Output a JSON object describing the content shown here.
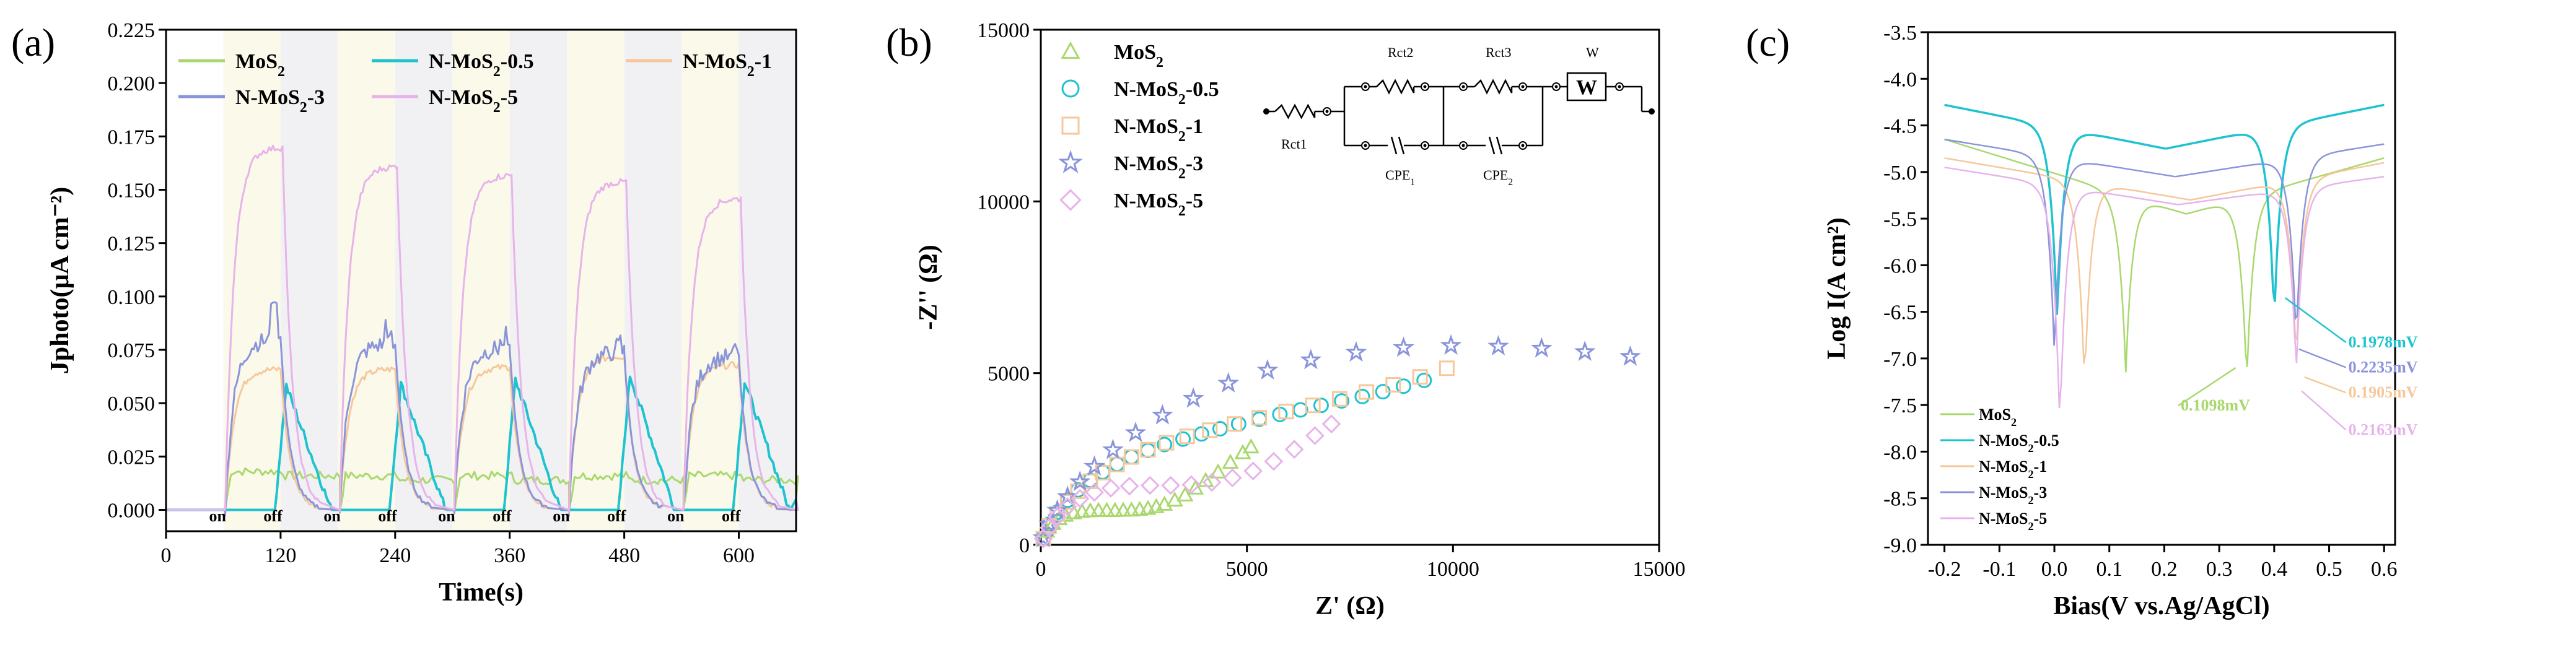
{
  "chart_data": [
    {
      "id": "a",
      "type": "line",
      "panel_label": "(a)",
      "xlabel": "Time(s)",
      "ylabel": "Jphoto(μA cm⁻²)",
      "xlim": [
        0,
        660
      ],
      "ylim": [
        -0.01,
        0.225
      ],
      "xticks": [
        "0",
        "120",
        "240",
        "360",
        "480",
        "600"
      ],
      "xtick_values": [
        0,
        120,
        240,
        360,
        480,
        600
      ],
      "yticks": [
        "0.000",
        "0.025",
        "0.050",
        "0.075",
        "0.100",
        "0.125",
        "0.150",
        "0.175",
        "0.200",
        "0.225"
      ],
      "ytick_values": [
        0,
        0.025,
        0.05,
        0.075,
        0.1,
        0.125,
        0.15,
        0.175,
        0.2,
        0.225
      ],
      "on_off_labels": [
        {
          "t": 54,
          "text": "on"
        },
        {
          "t": 112,
          "text": "off"
        },
        {
          "t": 174,
          "text": "on"
        },
        {
          "t": 232,
          "text": "off"
        },
        {
          "t": 294,
          "text": "on"
        },
        {
          "t": 352,
          "text": "off"
        },
        {
          "t": 414,
          "text": "on"
        },
        {
          "t": 472,
          "text": "off"
        },
        {
          "t": 534,
          "text": "on"
        },
        {
          "t": 592,
          "text": "off"
        }
      ],
      "light_periods": [
        [
          60,
          120
        ],
        [
          180,
          240
        ],
        [
          300,
          360
        ],
        [
          420,
          480
        ],
        [
          540,
          600
        ]
      ],
      "legend": [
        "MoS₂",
        "N-MoS₂-0.5",
        "N-MoS₂-1",
        "N-MoS₂-3",
        "N-MoS₂-5"
      ],
      "series": [
        {
          "name": "MoS₂",
          "color": "#a9d86e",
          "cycles": [
            {
              "t_on": 62,
              "plateau": 0.018,
              "t_off": 122,
              "end": 0.014
            },
            {
              "t_on": 182,
              "plateau": 0.016,
              "t_off": 242,
              "end": 0.014
            },
            {
              "t_on": 302,
              "plateau": 0.016,
              "t_off": 362,
              "end": 0.014
            },
            {
              "t_on": 422,
              "plateau": 0.016,
              "t_off": 482,
              "end": 0.014
            },
            {
              "t_on": 542,
              "plateau": 0.016,
              "t_off": 602,
              "end": 0.014
            }
          ]
        },
        {
          "name": "N-MoS₂-0.5",
          "color": "#1ec3cf",
          "cycles": [
            {
              "t_on": 62,
              "plateau": 0.0,
              "t_off": 122,
              "end": 0.058
            },
            {
              "t_on": 182,
              "plateau": 0.0,
              "t_off": 242,
              "end": 0.059
            },
            {
              "t_on": 302,
              "plateau": 0.0,
              "t_off": 362,
              "end": 0.061
            },
            {
              "t_on": 422,
              "plateau": 0.0,
              "t_off": 482,
              "end": 0.063
            },
            {
              "t_on": 542,
              "plateau": 0.0,
              "t_off": 602,
              "end": 0.06
            }
          ]
        },
        {
          "name": "N-MoS₂-1",
          "color": "#f6c79a",
          "cycles": [
            {
              "t_on": 62,
              "plateau": 0.066,
              "t_off": 120,
              "end": 0.0
            },
            {
              "t_on": 182,
              "plateau": 0.066,
              "t_off": 240,
              "end": 0.0
            },
            {
              "t_on": 302,
              "plateau": 0.067,
              "t_off": 360,
              "end": 0.0
            },
            {
              "t_on": 422,
              "plateau": 0.072,
              "t_off": 480,
              "end": 0.0
            },
            {
              "t_on": 542,
              "plateau": 0.068,
              "t_off": 600,
              "end": 0.0
            }
          ]
        },
        {
          "name": "N-MoS₂-3",
          "color": "#8a94db",
          "cycles": [
            {
              "t_on": 62,
              "plateau": 0.08,
              "t_off": 120,
              "end": 0.0,
              "peak": 0.098
            },
            {
              "t_on": 182,
              "plateau": 0.078,
              "t_off": 240,
              "end": 0.0,
              "peak": 0.09
            },
            {
              "t_on": 302,
              "plateau": 0.076,
              "t_off": 360,
              "end": 0.0,
              "peak": 0.087
            },
            {
              "t_on": 422,
              "plateau": 0.074,
              "t_off": 480,
              "end": 0.0,
              "peak": 0.084
            },
            {
              "t_on": 542,
              "plateau": 0.072,
              "t_off": 600,
              "end": 0.0,
              "peak": 0.082
            }
          ]
        },
        {
          "name": "N-MoS₂-5",
          "color": "#e7b3ea",
          "cycles": [
            {
              "t_on": 62,
              "plateau": 0.17,
              "t_off": 122,
              "end": 0.0
            },
            {
              "t_on": 182,
              "plateau": 0.161,
              "t_off": 242,
              "end": 0.0
            },
            {
              "t_on": 302,
              "plateau": 0.157,
              "t_off": 362,
              "end": 0.0
            },
            {
              "t_on": 422,
              "plateau": 0.154,
              "t_off": 482,
              "end": 0.0
            },
            {
              "t_on": 542,
              "plateau": 0.146,
              "t_off": 602,
              "end": 0.0
            }
          ]
        }
      ]
    },
    {
      "id": "b",
      "type": "scatter",
      "panel_label": "(b)",
      "xlabel": "Z' (Ω)",
      "ylabel": "-Z'' (Ω)",
      "xlim": [
        0,
        15000
      ],
      "ylim": [
        0,
        15000
      ],
      "xticks": [
        "0",
        "5000",
        "10000",
        "15000"
      ],
      "xtick_values": [
        0,
        5000,
        10000,
        15000
      ],
      "yticks": [
        "0",
        "5000",
        "10000",
        "15000"
      ],
      "ytick_values": [
        0,
        5000,
        10000,
        15000
      ],
      "legend": [
        "MoS₂",
        "N-MoS₂-0.5",
        "N-MoS₂-1",
        "N-MoS₂-3",
        "N-MoS₂-5"
      ],
      "circuit_labels": [
        "Rct1",
        "Rct2",
        "Rct3",
        "W",
        "W",
        "CPE₁",
        "CPE₂"
      ],
      "series": [
        {
          "name": "MoS₂",
          "marker": "triangle",
          "color": "#a9d86e",
          "x": [
            50,
            150,
            300,
            450,
            600,
            800,
            1000,
            1200,
            1400,
            1600,
            1800,
            2000,
            2200,
            2400,
            2600,
            2800,
            3000,
            3250,
            3500,
            3750,
            4000,
            4300,
            4600,
            4900,
            5100
          ],
          "y": [
            150,
            400,
            620,
            760,
            860,
            930,
            970,
            990,
            1000,
            1000,
            1000,
            1005,
            1010,
            1030,
            1060,
            1110,
            1180,
            1300,
            1450,
            1650,
            1870,
            2120,
            2400,
            2680,
            2850
          ]
        },
        {
          "name": "N-MoS₂-0.5",
          "marker": "circle",
          "color": "#1ec3cf",
          "x": [
            60,
            200,
            400,
            650,
            900,
            1200,
            1500,
            1850,
            2200,
            2600,
            3000,
            3450,
            3900,
            4350,
            4800,
            5300,
            5800,
            6300,
            6800,
            7300,
            7800,
            8300,
            8800,
            9300
          ],
          "y": [
            200,
            600,
            950,
            1300,
            1600,
            1880,
            2120,
            2350,
            2560,
            2750,
            2920,
            3080,
            3230,
            3380,
            3520,
            3660,
            3800,
            3930,
            4060,
            4190,
            4320,
            4460,
            4620,
            4790
          ]
        },
        {
          "name": "N-MoS₂-1",
          "marker": "square",
          "color": "#f6c79a",
          "x": [
            60,
            200,
            400,
            650,
            900,
            1200,
            1500,
            1850,
            2200,
            2600,
            3050,
            3550,
            4100,
            4700,
            5300,
            5950,
            6600,
            7250,
            7900,
            8550,
            9200,
            9850
          ],
          "y": [
            180,
            550,
            900,
            1250,
            1560,
            1850,
            2100,
            2340,
            2560,
            2770,
            2970,
            3160,
            3340,
            3520,
            3700,
            3880,
            4060,
            4250,
            4450,
            4660,
            4890,
            5140
          ]
        },
        {
          "name": "N-MoS₂-3",
          "marker": "star",
          "color": "#8a94db",
          "x": [
            60,
            200,
            400,
            650,
            950,
            1300,
            1750,
            2300,
            2950,
            3700,
            4550,
            5500,
            6550,
            7650,
            8800,
            9950,
            11100,
            12150,
            13200,
            14300
          ],
          "y": [
            200,
            600,
            1000,
            1400,
            1830,
            2280,
            2760,
            3260,
            3770,
            4260,
            4700,
            5080,
            5380,
            5600,
            5740,
            5800,
            5780,
            5720,
            5620,
            5480
          ]
        },
        {
          "name": "N-MoS₂-5",
          "marker": "diamond",
          "color": "#e7b3ea",
          "x": [
            60,
            200,
            400,
            650,
            950,
            1300,
            1700,
            2150,
            2650,
            3150,
            3650,
            4150,
            4650,
            5150,
            5650,
            6150,
            6650,
            7050
          ],
          "y": [
            180,
            500,
            820,
            1110,
            1350,
            1530,
            1650,
            1710,
            1730,
            1730,
            1750,
            1820,
            1950,
            2150,
            2430,
            2780,
            3180,
            3520
          ]
        }
      ]
    },
    {
      "id": "c",
      "type": "line",
      "panel_label": "(c)",
      "xlabel": "Bias(V vs.Ag/AgCl)",
      "ylabel": "Log I(A cm²)",
      "xlim": [
        -0.23,
        0.62
      ],
      "ylim": [
        -9.0,
        -3.5
      ],
      "xticks": [
        "-0.2",
        "-0.1",
        "0.0",
        "0.1",
        "0.2",
        "0.3",
        "0.4",
        "0.5",
        "0.6"
      ],
      "xtick_values": [
        -0.2,
        -0.1,
        0.0,
        0.1,
        0.2,
        0.3,
        0.4,
        0.5,
        0.6
      ],
      "yticks": [
        "-9.0",
        "-8.5",
        "-8.0",
        "-7.5",
        "-7.0",
        "-6.5",
        "-6.0",
        "-5.5",
        "-5.0",
        "-4.5",
        "-4.0",
        "-3.5"
      ],
      "ytick_values": [
        -9.0,
        -8.5,
        -8.0,
        -7.5,
        -7.0,
        -6.5,
        -6.0,
        -5.5,
        -5.0,
        -4.5,
        -4.0,
        -3.5
      ],
      "legend": [
        "MoS₂",
        "N-MoS₂-0.5",
        "N-MoS₂-1",
        "N-MoS₂-3",
        "N-MoS₂-5"
      ],
      "annotations": [
        {
          "text": "0.1978mV",
          "color": "#1ec3cf",
          "x": 0.535,
          "y": -6.88
        },
        {
          "text": "0.2235mV",
          "color": "#8a94db",
          "x": 0.535,
          "y": -7.15
        },
        {
          "text": "0.1905mV",
          "color": "#f6c79a",
          "x": 0.535,
          "y": -7.42
        },
        {
          "text": "0.1098mV",
          "color": "#a9d86e",
          "x": 0.23,
          "y": -7.56
        },
        {
          "text": "0.2163mV",
          "color": "#e7b3ea",
          "x": 0.535,
          "y": -7.82
        }
      ],
      "series": [
        {
          "name": "MoS₂",
          "color": "#a9d86e",
          "curves": [
            {
              "e1": 0.13,
              "i1": -7.15,
              "left": -4.65,
              "right": -5.45
            },
            {
              "e1": 0.35,
              "i1": -7.25,
              "left": -5.45,
              "right": -4.85
            }
          ]
        },
        {
          "name": "N-MoS₂-0.5",
          "color": "#1ec3cf",
          "curves": [
            {
              "e1": 0.005,
              "i1": -6.6,
              "left": -4.28,
              "right": -4.75
            },
            {
              "e1": 0.4,
              "i1": -6.6,
              "left": -4.75,
              "right": -4.28
            }
          ]
        },
        {
          "name": "N-MoS₂-1",
          "color": "#f6c79a",
          "curves": [
            {
              "e1": 0.055,
              "i1": -7.3,
              "left": -4.85,
              "right": -5.3
            },
            {
              "e1": 0.44,
              "i1": -7.0,
              "left": -5.3,
              "right": -4.9
            }
          ]
        },
        {
          "name": "N-MoS₂-3",
          "color": "#8a94db",
          "curves": [
            {
              "e1": 0.0,
              "i1": -6.95,
              "left": -4.65,
              "right": -5.05
            },
            {
              "e1": 0.44,
              "i1": -6.8,
              "left": -5.05,
              "right": -4.7
            }
          ]
        },
        {
          "name": "N-MoS₂-5",
          "color": "#e7b3ea",
          "curves": [
            {
              "e1": 0.01,
              "i1": -7.75,
              "left": -4.95,
              "right": -5.35
            },
            {
              "e1": 0.44,
              "i1": -7.15,
              "left": -5.35,
              "right": -5.05
            }
          ]
        }
      ]
    }
  ]
}
